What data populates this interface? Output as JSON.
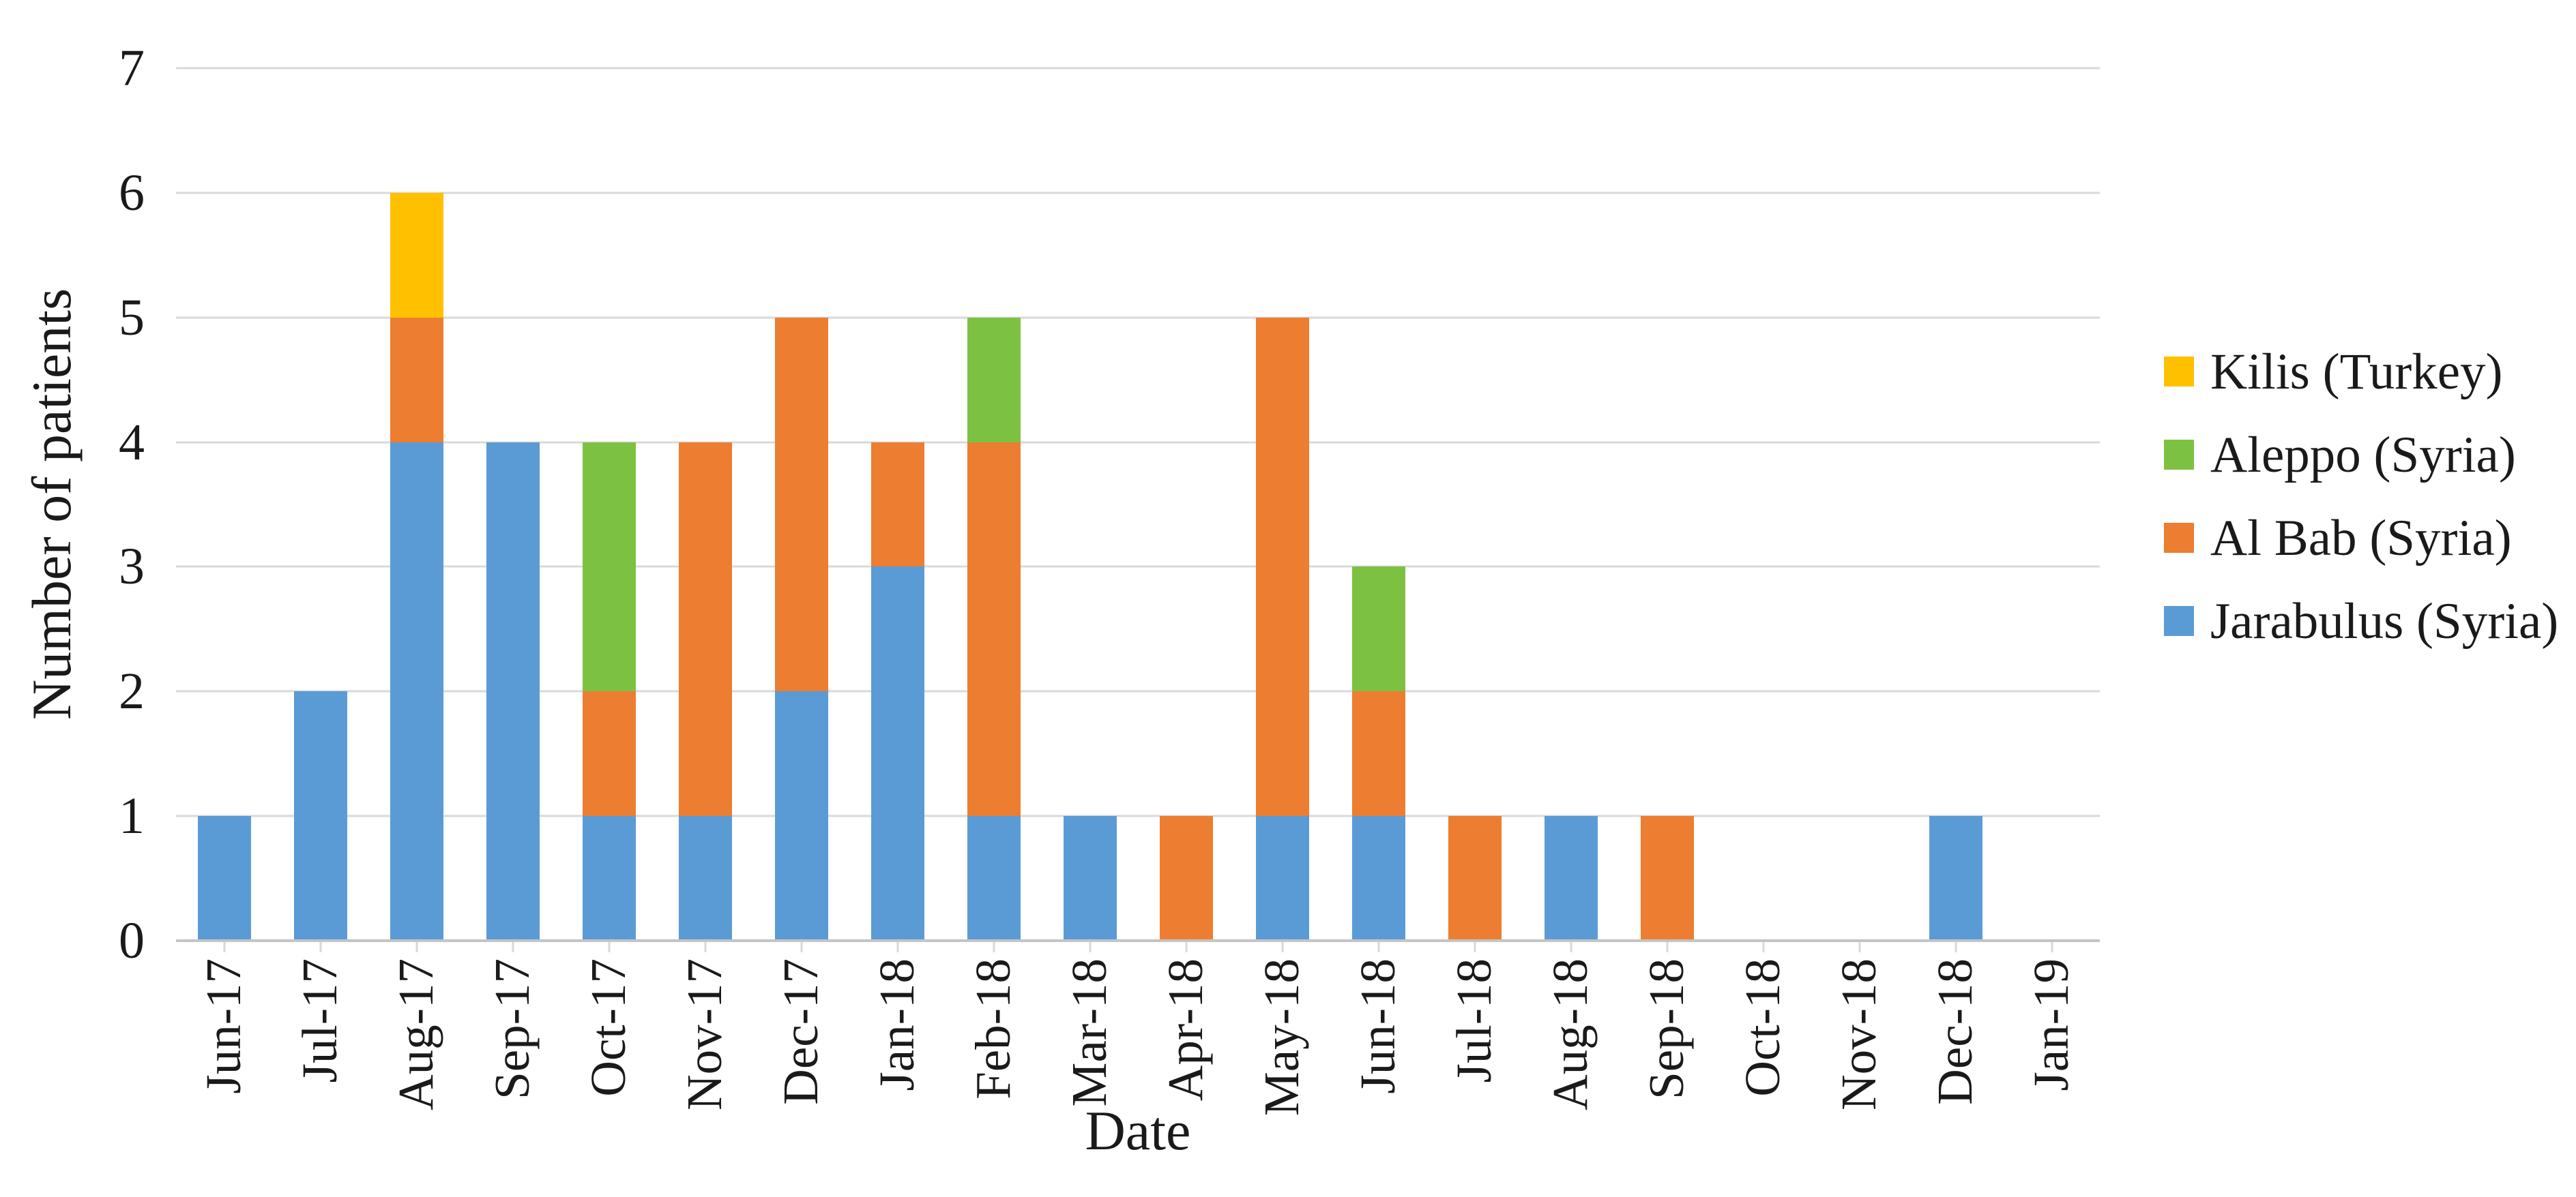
{
  "y_axis": {
    "title": "Number of patients",
    "ticks": [
      0,
      1,
      2,
      3,
      4,
      5,
      6,
      7
    ],
    "max": 7
  },
  "x_axis": {
    "title": "Date"
  },
  "legend": [
    {
      "label": "Kilis (Turkey)",
      "color": "#FFC000"
    },
    {
      "label": "Aleppo (Syria)",
      "color": "#7DC142"
    },
    {
      "label": "Al Bab (Syria)",
      "color": "#ED7D31"
    },
    {
      "label": "Jarabulus (Syria)",
      "color": "#5B9BD5"
    }
  ],
  "colors": {
    "gridline": "#D9D9D9",
    "axis_line": "#C4C4C4",
    "tick": "#D9D9D9",
    "text": "#1a1a1a"
  },
  "chart_data": {
    "type": "bar",
    "stacked": true,
    "title": "",
    "xlabel": "Date",
    "ylabel": "Number of patients",
    "ylim": [
      0,
      7
    ],
    "grid": "horizontal",
    "legend_position": "right",
    "categories": [
      "Jun-17",
      "Jul-17",
      "Aug-17",
      "Sep-17",
      "Oct-17",
      "Nov-17",
      "Dec-17",
      "Jan-18",
      "Feb-18",
      "Mar-18",
      "Apr-18",
      "May-18",
      "Jun-18",
      "Jul-18",
      "Aug-18",
      "Sep-18",
      "Oct-18",
      "Nov-18",
      "Dec-18",
      "Jan-19"
    ],
    "series": [
      {
        "name": "Jarabulus (Syria)",
        "color": "#5B9BD5",
        "values": [
          1,
          2,
          4,
          4,
          1,
          1,
          2,
          3,
          1,
          1,
          0,
          1,
          1,
          0,
          1,
          0,
          0,
          0,
          1,
          0
        ]
      },
      {
        "name": "Al Bab (Syria)",
        "color": "#ED7D31",
        "values": [
          0,
          0,
          1,
          0,
          1,
          3,
          3,
          1,
          3,
          0,
          1,
          4,
          1,
          1,
          0,
          1,
          0,
          0,
          0,
          0
        ]
      },
      {
        "name": "Aleppo (Syria)",
        "color": "#7DC142",
        "values": [
          0,
          0,
          0,
          0,
          2,
          0,
          0,
          0,
          1,
          0,
          0,
          0,
          1,
          0,
          0,
          0,
          0,
          0,
          0,
          0
        ]
      },
      {
        "name": "Kilis (Turkey)",
        "color": "#FFC000",
        "values": [
          0,
          0,
          1,
          0,
          0,
          0,
          0,
          0,
          0,
          0,
          0,
          0,
          0,
          0,
          0,
          0,
          0,
          0,
          0,
          0
        ]
      }
    ],
    "totals": [
      1,
      2,
      6,
      4,
      4,
      4,
      5,
      4,
      5,
      1,
      1,
      5,
      3,
      1,
      1,
      1,
      0,
      0,
      1,
      0
    ]
  }
}
